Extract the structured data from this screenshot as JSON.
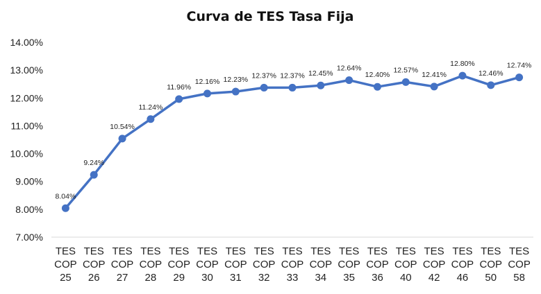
{
  "chart_data": {
    "type": "line",
    "title": "Curva de TES Tasa Fija",
    "xlabel": "",
    "ylabel": "",
    "ylim": [
      7,
      14
    ],
    "yticks": [
      "7.00%",
      "8.00%",
      "9.00%",
      "10.00%",
      "11.00%",
      "12.00%",
      "13.00%",
      "14.00%"
    ],
    "grid": false,
    "legend": "none",
    "color": "#4472C4",
    "categories": [
      [
        "TES",
        "COP",
        "25"
      ],
      [
        "TES",
        "COP",
        "26"
      ],
      [
        "TES",
        "COP",
        "27"
      ],
      [
        "TES",
        "COP",
        "28"
      ],
      [
        "TES",
        "COP",
        "29"
      ],
      [
        "TES",
        "COP",
        "30"
      ],
      [
        "TES",
        "COP",
        "31"
      ],
      [
        "TES",
        "COP",
        "32"
      ],
      [
        "TES",
        "COP",
        "33"
      ],
      [
        "TES",
        "COP",
        "34"
      ],
      [
        "TES",
        "COP",
        "35"
      ],
      [
        "TES",
        "COP",
        "36"
      ],
      [
        "TES",
        "COP",
        "40"
      ],
      [
        "TES",
        "COP",
        "42"
      ],
      [
        "TES",
        "COP",
        "46"
      ],
      [
        "TES",
        "COP",
        "50"
      ],
      [
        "TES",
        "COP",
        "58"
      ]
    ],
    "values": [
      8.04,
      9.24,
      10.54,
      11.24,
      11.96,
      12.16,
      12.23,
      12.37,
      12.37,
      12.45,
      12.64,
      12.4,
      12.57,
      12.41,
      12.8,
      12.46,
      12.74
    ],
    "data_labels": [
      "8.04%",
      "9.24%",
      "10.54%",
      "11.24%",
      "11.96%",
      "12.16%",
      "12.23%",
      "12.37%",
      "12.37%",
      "12.45%",
      "12.64%",
      "12.40%",
      "12.57%",
      "12.41%",
      "12.80%",
      "12.46%",
      "12.74%"
    ]
  }
}
